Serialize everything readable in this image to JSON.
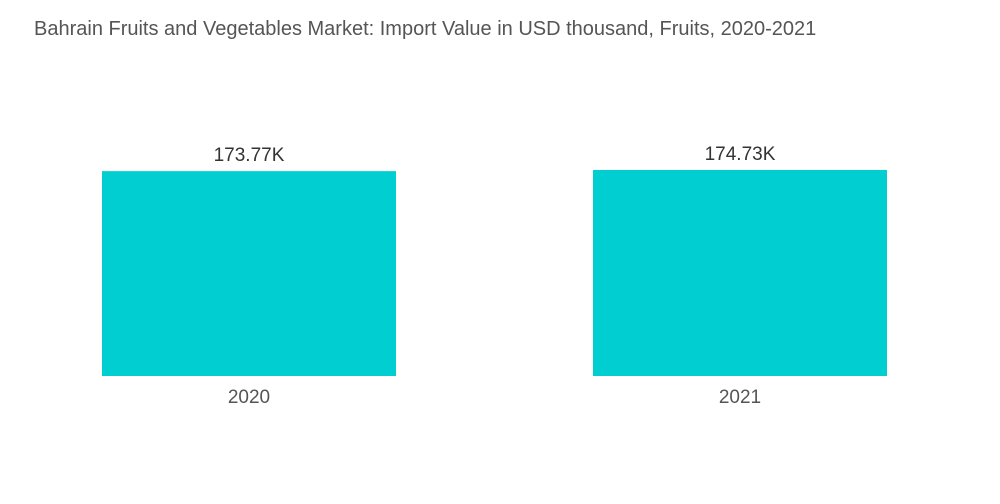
{
  "chart_data": {
    "type": "bar",
    "title": "Bahrain Fruits and Vegetables Market: Import Value in USD thousand, Fruits, 2020-2021",
    "xlabel": "",
    "ylabel": "",
    "categories": [
      "2020",
      "2021"
    ],
    "values": [
      173.77,
      174.73
    ],
    "data_labels": [
      "173.77K",
      "174.73K"
    ],
    "ylim": [
      0,
      174.73
    ],
    "grid": false,
    "legend": "none",
    "bar_color": "#00CED1"
  }
}
